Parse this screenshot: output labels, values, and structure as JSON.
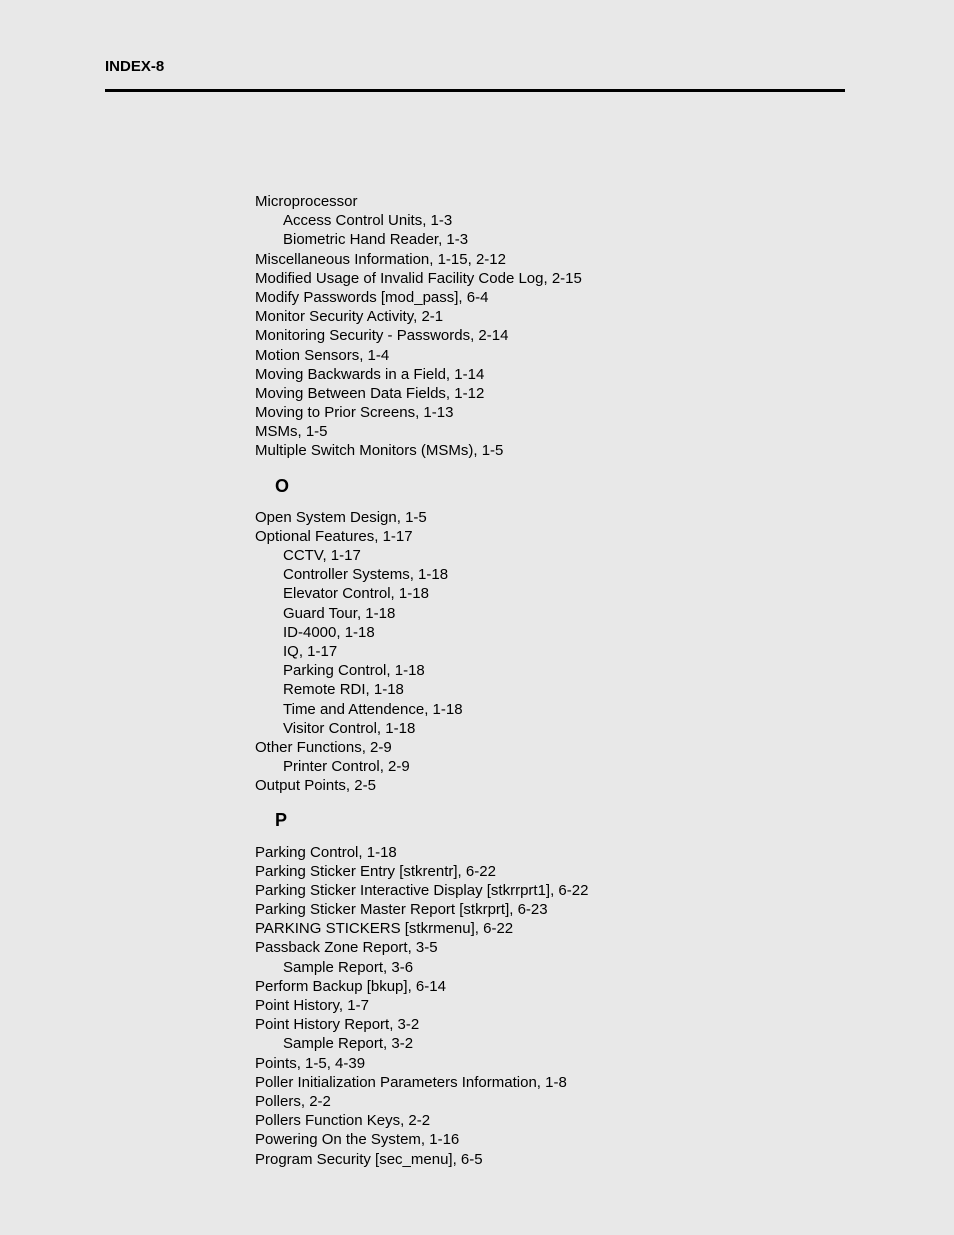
{
  "header": "INDEX-8",
  "entries_block1": [
    {
      "text": "Microprocessor",
      "refs": "",
      "indent": 0
    },
    {
      "text": "Access Control Units,",
      "refs": " 1-3",
      "indent": 1
    },
    {
      "text": "Biometric Hand Reader,",
      "refs": " 1-3",
      "indent": 1
    },
    {
      "text": "Miscellaneous Information,",
      "refs": " 1-15,  2-12",
      "indent": 0
    },
    {
      "text": "Modified Usage of Invalid Facility Code Log,",
      "refs": " 2-15",
      "indent": 0
    },
    {
      "text": "Modify Passwords [mod_pass],",
      "refs": " 6-4",
      "indent": 0
    },
    {
      "text": "Monitor Security Activity,",
      "refs": " 2-1",
      "indent": 0
    },
    {
      "text": "Monitoring Security - Passwords,",
      "refs": " 2-14",
      "indent": 0
    },
    {
      "text": "Motion Sensors,",
      "refs": " 1-4",
      "indent": 0
    },
    {
      "text": "Moving Backwards in a Field,",
      "refs": " 1-14",
      "indent": 0
    },
    {
      "text": "Moving Between Data Fields,",
      "refs": " 1-12",
      "indent": 0
    },
    {
      "text": "Moving to Prior Screens,",
      "refs": " 1-13",
      "indent": 0
    },
    {
      "text": "MSMs,",
      "refs": " 1-5",
      "indent": 0
    },
    {
      "text": "Multiple Switch Monitors (MSMs),",
      "refs": " 1-5",
      "indent": 0
    }
  ],
  "section_o": "O",
  "entries_block2": [
    {
      "text": "Open System Design,",
      "refs": " 1-5",
      "indent": 0
    },
    {
      "text": "Optional Features,",
      "refs": " 1-17",
      "indent": 0
    },
    {
      "text": "CCTV,",
      "refs": " 1-17",
      "indent": 1
    },
    {
      "text": "Controller Systems,",
      "refs": " 1-18",
      "indent": 1
    },
    {
      "text": "Elevator Control,",
      "refs": " 1-18",
      "indent": 1
    },
    {
      "text": "Guard Tour,",
      "refs": " 1-18",
      "indent": 1
    },
    {
      "text": "ID-4000,",
      "refs": " 1-18",
      "indent": 1
    },
    {
      "text": "IQ,",
      "refs": " 1-17",
      "indent": 1
    },
    {
      "text": "Parking Control,",
      "refs": " 1-18",
      "indent": 1
    },
    {
      "text": "Remote RDI,",
      "refs": " 1-18",
      "indent": 1
    },
    {
      "text": "Time and Attendence,",
      "refs": " 1-18",
      "indent": 1
    },
    {
      "text": "Visitor Control,",
      "refs": " 1-18",
      "indent": 1
    },
    {
      "text": "Other Functions,",
      "refs": " 2-9",
      "indent": 0
    },
    {
      "text": "Printer Control,",
      "refs": " 2-9",
      "indent": 1
    },
    {
      "text": "Output Points,",
      "refs": " 2-5",
      "indent": 0
    }
  ],
  "section_p": "P",
  "entries_block3": [
    {
      "text": "Parking Control,",
      "refs": " 1-18",
      "indent": 0
    },
    {
      "text": "Parking Sticker Entry [stkrentr],",
      "refs": " 6-22",
      "indent": 0
    },
    {
      "text": "Parking Sticker Interactive Display [stkrrprt1],",
      "refs": " 6-22",
      "indent": 0
    },
    {
      "text": "Parking Sticker Master Report [stkrprt],",
      "refs": " 6-23",
      "indent": 0
    },
    {
      "text": "PARKING STICKERS [stkrmenu],",
      "refs": " 6-22",
      "indent": 0
    },
    {
      "text": "Passback Zone Report,",
      "refs": " 3-5",
      "indent": 0
    },
    {
      "text": "Sample Report,",
      "refs": " 3-6",
      "indent": 1
    },
    {
      "text": "Perform Backup [bkup],",
      "refs": " 6-14",
      "indent": 0
    },
    {
      "text": "Point History,",
      "refs": " 1-7",
      "indent": 0
    },
    {
      "text": "Point History Report,",
      "refs": " 3-2",
      "indent": 0
    },
    {
      "text": "Sample Report,",
      "refs": " 3-2",
      "indent": 1
    },
    {
      "text": "Points,",
      "refs": " 1-5,  4-39",
      "indent": 0
    },
    {
      "text": "Poller Initialization Parameters Information,",
      "refs": " 1-8",
      "indent": 0
    },
    {
      "text": "Pollers,",
      "refs": " 2-2",
      "indent": 0
    },
    {
      "text": "Pollers Function Keys,",
      "refs": " 2-2",
      "indent": 0
    },
    {
      "text": "Powering On the System,",
      "refs": " 1-16",
      "indent": 0
    },
    {
      "text": "Program Security [sec_menu],",
      "refs": " 6-5",
      "indent": 0
    }
  ]
}
